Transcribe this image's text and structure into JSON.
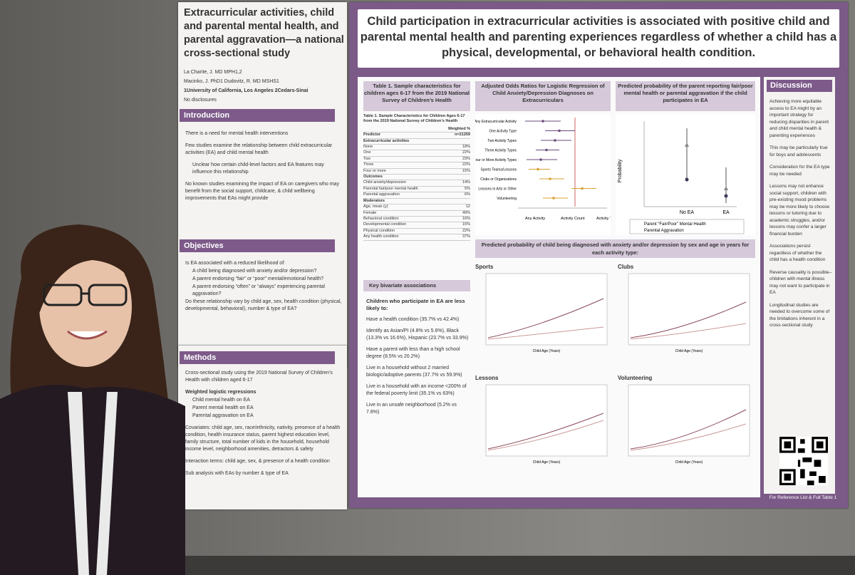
{
  "left_panel": {
    "title": "Extracurricular activities, child and parental mental health, and parental aggravation—a national cross-sectional study",
    "authors": [
      "La Charite, J. MD MPH1,2",
      "Macinko, J. PhD1 Dudovitz, R. MD MSHS1",
      "1University of California, Los Angeles 2Cedars-Sinai",
      "No disclosures"
    ],
    "intro_title": "Introduction",
    "intro": [
      "There is a need for mental health interventions",
      "Few studies examine the relationship between child extracurricular activities (EA) and child mental health",
      "Unclear how certain child-level factors and EA features may influence this relationship",
      "No known studies examining the impact of EA on caregivers who may benefit from the social support, childcare, & child wellbeing improvements that EAs might provide"
    ],
    "obj_title": "Objectives",
    "obj": [
      "Is EA associated with a reduced likelihood of:",
      "A child being diagnosed with anxiety and/or depression?",
      "A parent endorsing “fair” or “poor” mental/emotional health?",
      "A parent endorsing “often” or “always” experiencing parental aggravation?",
      "Do these relationship vary by child age, sex, health condition (physical, developmental, behavioral), number & type of EA?"
    ],
    "methods_title": "Methods",
    "methods": [
      "Cross-sectional study using the 2019 National Survey of Children’s Health with children aged 6-17",
      "Weighted logistic regressions",
      "Child mental health on EA",
      "Parent mental health on EA",
      "Parental aggravation on EA",
      "Covariates: child age, sex, race/ethnicity, nativity, presence of a health condition, health insurance status, parent highest education level, family structure, total number of kids in the household, household income level, neighborhood amenities, detractors & safety",
      "Interaction terms: child age, sex, & presence of a health condition",
      "Sub analysis with EAs by number & type of EA"
    ]
  },
  "main": {
    "header": "Child participation in extracurricular activities is associated with positive child and parental mental health and parenting experiences regardless of whether a child has a physical, developmental, or behavioral health condition.",
    "table1_title": "Table 1. Sample characteristics for children ages 6-17 from the 2019 National Survey of Children’s Health",
    "table1_caption": "Table 1. Sample Characteristics for Children Ages 6-17 from the 2019 National Survey of Children’s Health",
    "table1_rows": [
      [
        "Predictor",
        "n=21259"
      ],
      [
        "Extracurricular activities",
        ""
      ],
      [
        "None",
        "18%"
      ],
      [
        "One",
        "22%"
      ],
      [
        "Two",
        "23%"
      ],
      [
        "Three",
        "22%"
      ],
      [
        "Four or more",
        "15%"
      ],
      [
        "Outcomes",
        ""
      ],
      [
        "Child anxiety/depression",
        "14%"
      ],
      [
        "Parental fair/poor mental health",
        "5%"
      ],
      [
        "Parental aggravation",
        "6%"
      ],
      [
        "Moderators",
        ""
      ],
      [
        "Age, mean (y)",
        "12"
      ],
      [
        "Female",
        "49%"
      ],
      [
        "Behavioral condition",
        "16%"
      ],
      [
        "Developmental condition",
        "15%"
      ],
      [
        "Physical condition",
        "22%"
      ],
      [
        "Any health condition",
        "37%"
      ]
    ],
    "table1_colhead": "Weighted %",
    "or_title": "Adjusted Odds Ratios for Logistic Regression of Child Anxiety/Depression Diagnoses on Extracurriculars",
    "or_labels": [
      "Any Extracurricular Activity",
      "One Activity Type",
      "Two Activity Types",
      "Three Activity Types",
      "Four or More Activity Types",
      "Sports Teams/Lessons",
      "Clubs or Organizations",
      "Lessons in Arts or Other",
      "Volunteering"
    ],
    "or_legend": [
      "Any Activity",
      "Activity Count",
      "Activity Type"
    ],
    "prob_title": "Predicted probability of the parent reporting fair/poor mental health or parental aggravation if the child participates in EA",
    "prob_ylabel": "Probability",
    "prob_x": [
      "No EA",
      "EA"
    ],
    "prob_legend": [
      "Parent “Fair/Poor” Mental Health",
      "Parental Aggravation"
    ],
    "kb_title": "Key bivariate associations",
    "kb_intro": "Children who participate in EA are less likely to:",
    "kb_items": [
      "Have a health condition (35.7% vs 42.4%)",
      "Identify as Asian/PI (4.8% vs 5.6%), Black (13.3% vs 16.6%), Hispanic (23.7% vs 33.9%)",
      "Have a parent with less than a high school degree (8.5% vs 20.2%)",
      "Live in a household without 2 married biologic/adoptive parents (37.7% vs 59.9%)",
      "Live in a household with an income <200% of the federal poverty limit (35.1% vs 63%)",
      "Live in an unsafe neighborhood (5.2% vs 7.8%)"
    ],
    "panel_title": "Predicted probability of child being diagnosed with anxiety and/or depression by sex and age in years for each activity type:",
    "panels": [
      "Sports",
      "Clubs",
      "Lessons",
      "Volunteering"
    ],
    "xlabel": "Child Age (Years)"
  },
  "discussion": {
    "title": "Discussion",
    "items": [
      "Achieving more equitable access to EA might by an important strategy for reducing disparities in parent and child mental health & parenting experiences",
      "This may be particularly true for boys and adolescents",
      "Consideration for the EA type may be needed",
      "Lessons may not enhance social support, children with pre-existing mood problems may be more likely to choose lessons or tutoring due to academic struggles, and/or lessons may confer a larger financial burden",
      "Associations persist regardless of whether the child has a health condition",
      "Reverse causality is possible– children with mental illness may not want to participate in EA",
      "Longitudinal studies are needed to overcome some of the limitations inherent in a cross-sectional study"
    ],
    "ref": "For Reference List & Full Table 1"
  },
  "colors": {
    "purple": "#7b5a88",
    "lavender": "#d5c9da"
  }
}
